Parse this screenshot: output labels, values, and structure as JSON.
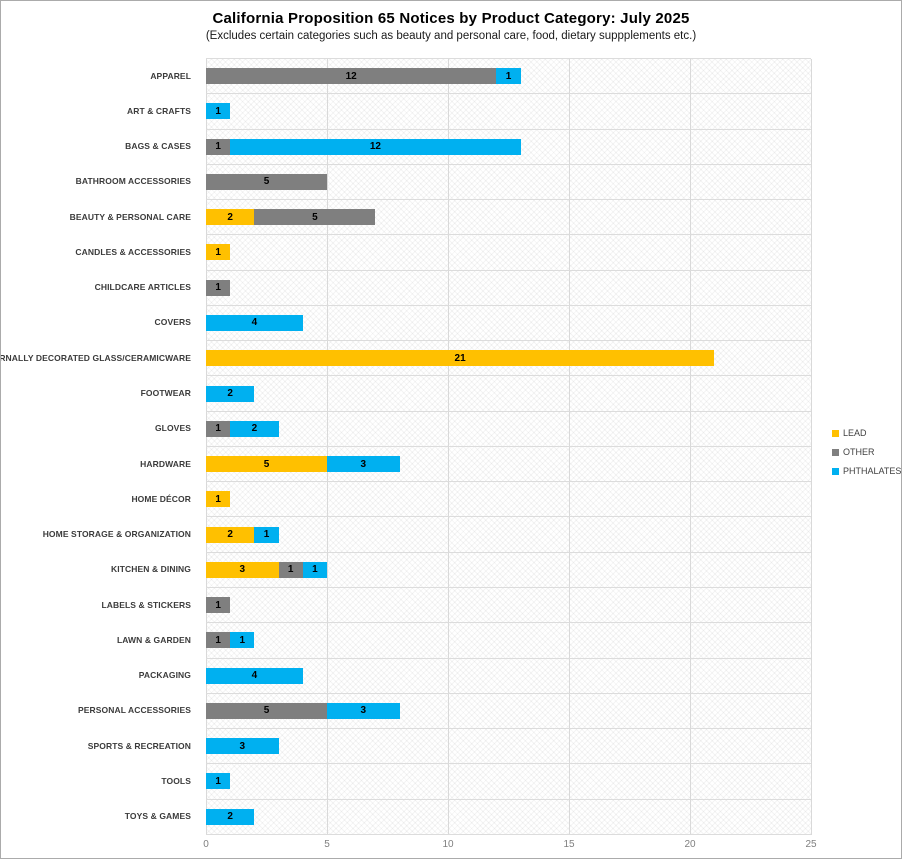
{
  "header": {
    "title": "California Proposition 65 Notices by Product Category: July 2025",
    "subtitle": "(Excludes certain categories such as beauty and personal care, food, dietary suppplements etc.)"
  },
  "style_colors": {
    "lead": "#FFC000",
    "other": "#7F7F7F",
    "phthalates": "#00B0F0",
    "gridline": "#D9D9D9",
    "tick_text": "#7F7F7F",
    "category_text": "#3B3B3B"
  },
  "chart_data": {
    "type": "bar",
    "orientation": "horizontal",
    "stacked": true,
    "grid": true,
    "data_labels": true,
    "legend_position": "right",
    "title": "California Proposition 65 Notices by Product Category: July 2025",
    "subtitle": "(Excludes certain categories such as beauty and personal care, food, dietary suppplements etc.)",
    "xlabel": "",
    "ylabel": "",
    "xlim": [
      0,
      25
    ],
    "x_ticks": [
      0,
      5,
      10,
      15,
      20,
      25
    ],
    "categories": [
      "APPAREL",
      "ART & CRAFTS",
      "BAGS & CASES",
      "BATHROOM ACCESSORIES",
      "BEAUTY & PERSONAL CARE",
      "CANDLES & ACCESSORIES",
      "CHILDCARE ARTICLES",
      "COVERS",
      "EXTERNALLY DECORATED GLASS/CERAMICWARE",
      "FOOTWEAR",
      "GLOVES",
      "HARDWARE",
      "HOME DÉCOR",
      "HOME STORAGE & ORGANIZATION",
      "KITCHEN & DINING",
      "LABELS & STICKERS",
      "LAWN & GARDEN",
      "PACKAGING",
      "PERSONAL ACCESSORIES",
      "SPORTS & RECREATION",
      "TOOLS",
      "TOYS & GAMES"
    ],
    "series": [
      {
        "name": "LEAD",
        "color": "#FFC000",
        "values": [
          0,
          0,
          0,
          0,
          2,
          1,
          0,
          0,
          21,
          0,
          0,
          5,
          1,
          2,
          3,
          0,
          0,
          0,
          0,
          0,
          0,
          0
        ]
      },
      {
        "name": "OTHER",
        "color": "#7F7F7F",
        "values": [
          12,
          0,
          1,
          5,
          5,
          0,
          1,
          0,
          0,
          0,
          1,
          0,
          0,
          0,
          1,
          1,
          1,
          0,
          5,
          0,
          0,
          0
        ]
      },
      {
        "name": "PHTHALATES",
        "color": "#00B0F0",
        "values": [
          1,
          1,
          12,
          0,
          0,
          0,
          0,
          4,
          0,
          2,
          2,
          3,
          0,
          1,
          1,
          0,
          1,
          4,
          3,
          3,
          1,
          2
        ]
      }
    ]
  }
}
